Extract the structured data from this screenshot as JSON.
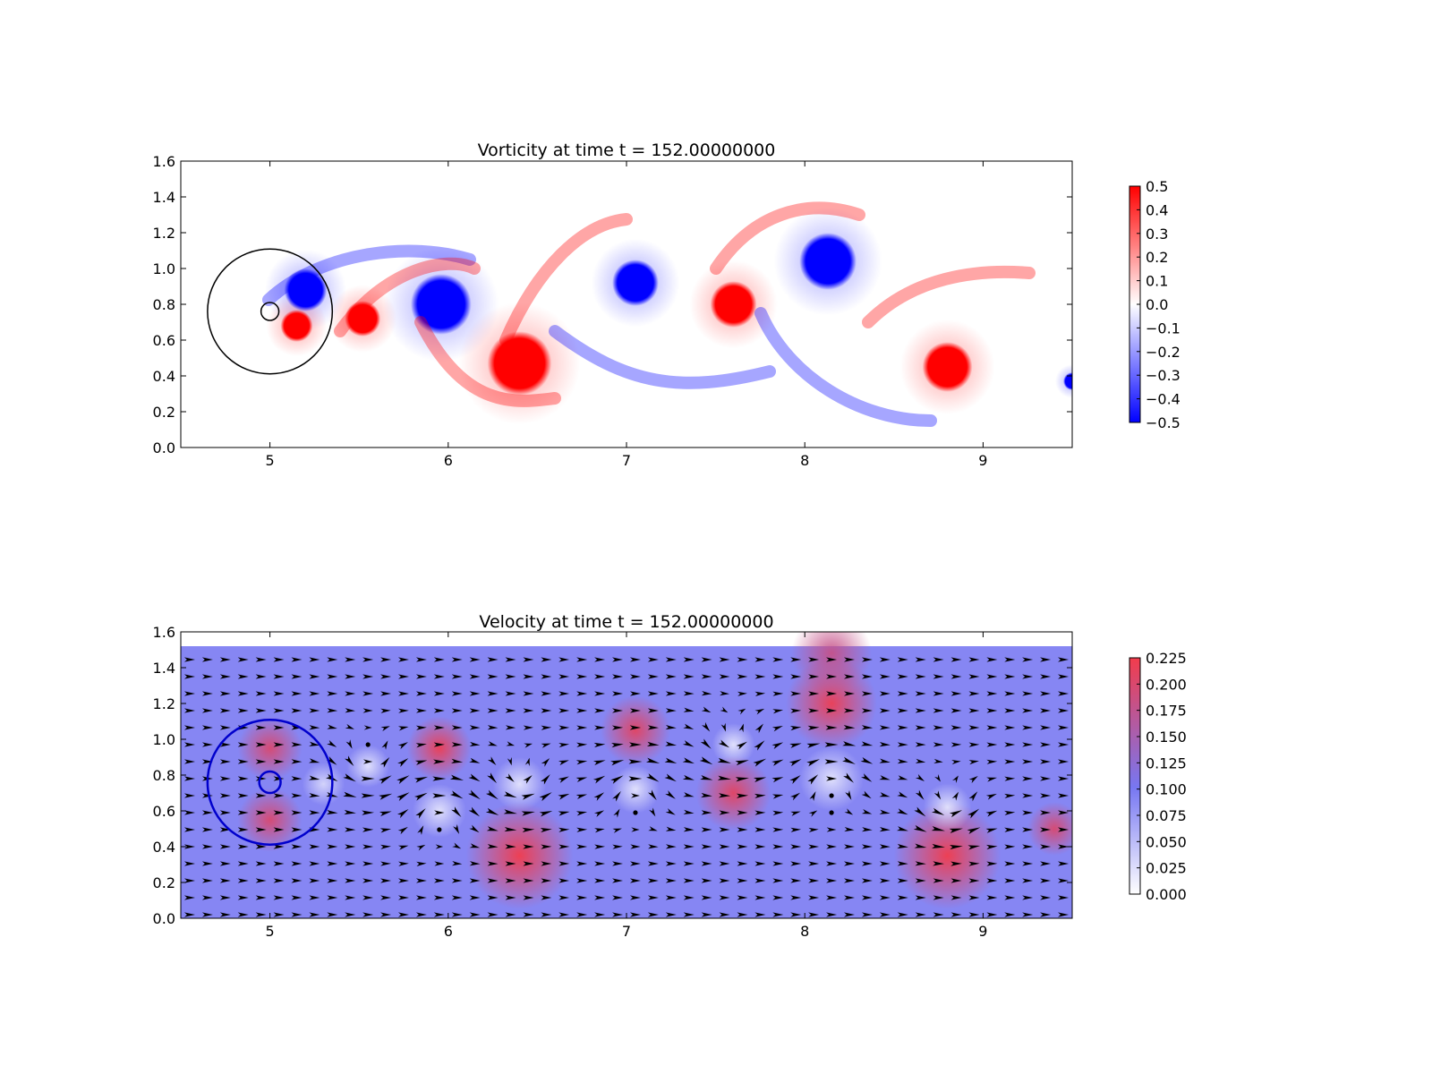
{
  "figure": {
    "panels": [
      "vorticity",
      "velocity"
    ]
  },
  "chart_data": [
    {
      "id": "vorticity",
      "type": "heatmap",
      "title": "Vorticity at time t =   152.00000000",
      "xlabel": "",
      "ylabel": "",
      "xlim": [
        4.5,
        9.5
      ],
      "ylim": [
        0.0,
        1.6
      ],
      "xticks": [
        "5",
        "6",
        "7",
        "8",
        "9"
      ],
      "xtick_values": [
        5,
        6,
        7,
        8,
        9
      ],
      "yticks": [
        "0.0",
        "0.2",
        "0.4",
        "0.6",
        "0.8",
        "1.0",
        "1.2",
        "1.4",
        "1.6"
      ],
      "ytick_values": [
        0.0,
        0.2,
        0.4,
        0.6,
        0.8,
        1.0,
        1.2,
        1.4,
        1.6
      ],
      "colormap": "bwr",
      "colors": {
        "low": "#0000ff",
        "mid": "#ffffff",
        "high": "#ff0000"
      },
      "colorbar": {
        "range": [
          -0.5,
          0.5
        ],
        "ticks": [
          "0.5",
          "0.4",
          "0.3",
          "0.2",
          "0.1",
          "0.0",
          "−0.1",
          "−0.2",
          "−0.3",
          "−0.4",
          "−0.5"
        ],
        "tick_values": [
          0.5,
          0.4,
          0.3,
          0.2,
          0.1,
          0.0,
          -0.1,
          -0.2,
          -0.3,
          -0.4,
          -0.5
        ]
      },
      "vortices": [
        {
          "x": 5.2,
          "y": 0.88,
          "r": 0.12,
          "w": -0.5
        },
        {
          "x": 5.15,
          "y": 0.68,
          "r": 0.09,
          "w": 0.5
        },
        {
          "x": 5.52,
          "y": 0.72,
          "r": 0.1,
          "w": 0.5
        },
        {
          "x": 5.96,
          "y": 0.8,
          "r": 0.17,
          "w": -0.5
        },
        {
          "x": 6.4,
          "y": 0.47,
          "r": 0.18,
          "w": 0.5
        },
        {
          "x": 7.05,
          "y": 0.92,
          "r": 0.13,
          "w": -0.5
        },
        {
          "x": 7.6,
          "y": 0.8,
          "r": 0.13,
          "w": 0.5
        },
        {
          "x": 8.13,
          "y": 1.04,
          "r": 0.16,
          "w": -0.5
        },
        {
          "x": 8.8,
          "y": 0.45,
          "r": 0.14,
          "w": 0.5
        },
        {
          "x": 9.5,
          "y": 0.37,
          "r": 0.05,
          "w": -0.5
        }
      ],
      "circles": [
        {
          "x": 5.0,
          "y": 0.76,
          "r": 0.35,
          "color": "#000000"
        },
        {
          "x": 5.0,
          "y": 0.76,
          "r": 0.05,
          "color": "#000000"
        }
      ]
    },
    {
      "id": "velocity",
      "type": "heatmap",
      "title": "Velocity at time t =   152.00000000",
      "xlabel": "",
      "ylabel": "",
      "xlim": [
        4.5,
        9.5
      ],
      "ylim": [
        0.0,
        1.6
      ],
      "data_top": 1.52,
      "xticks": [
        "5",
        "6",
        "7",
        "8",
        "9"
      ],
      "xtick_values": [
        5,
        6,
        7,
        8,
        9
      ],
      "yticks": [
        "0.0",
        "0.2",
        "0.4",
        "0.6",
        "0.8",
        "1.0",
        "1.2",
        "1.4",
        "1.6"
      ],
      "ytick_values": [
        0.0,
        0.2,
        0.4,
        0.6,
        0.8,
        1.0,
        1.2,
        1.4,
        1.6
      ],
      "colormap": "white-blue-red",
      "colors": {
        "low": "#ffffff",
        "mid": "#7777f2",
        "high": "#f23c4c",
        "arrow": "#000000"
      },
      "uniform_speed": 0.09,
      "colorbar": {
        "range": [
          0.0,
          0.225
        ],
        "ticks": [
          "0.225",
          "0.200",
          "0.175",
          "0.150",
          "0.125",
          "0.100",
          "0.075",
          "0.050",
          "0.025",
          "0.000"
        ],
        "tick_values": [
          0.225,
          0.2,
          0.175,
          0.15,
          0.125,
          0.1,
          0.075,
          0.05,
          0.025,
          0.0
        ]
      },
      "circles": [
        {
          "x": 5.0,
          "y": 0.76,
          "r": 0.35,
          "color": "#0000cc"
        },
        {
          "x": 5.0,
          "y": 0.76,
          "r": 0.06,
          "color": "#0000cc"
        }
      ]
    }
  ]
}
